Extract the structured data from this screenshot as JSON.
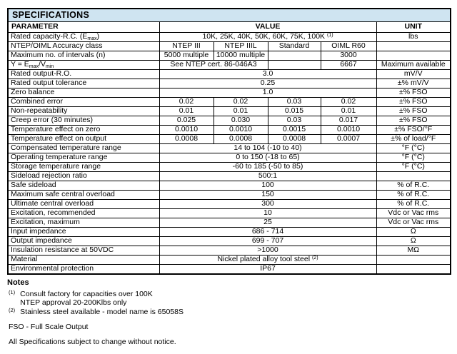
{
  "colors": {
    "title_bg": "#cfe4f1",
    "border": "#000000",
    "text": "#000000"
  },
  "table": {
    "title": "SPECIFICATIONS",
    "header": {
      "parameter": "PARAMETER",
      "value": "VALUE",
      "unit": "UNIT"
    },
    "rows": [
      {
        "parameter": "Rated capacity-R.C. (E_{max})",
        "cells": [
          {
            "text": "10K, 25K, 40K, 50K, 60K, 75K, 100K ^{(1)}",
            "span": 4
          }
        ],
        "unit": "lbs"
      },
      {
        "parameter": "NTEP/OIML Accuracy class",
        "cells": [
          {
            "text": "NTEP III",
            "span": 1
          },
          {
            "text": "NTEP IIIL",
            "span": 1
          },
          {
            "text": "Standard",
            "span": 1
          },
          {
            "text": "OIML R60",
            "span": 1
          }
        ],
        "unit": ""
      },
      {
        "parameter": "Maximum no. of intervals (n)",
        "cells": [
          {
            "text": "5000 multiple",
            "span": 1
          },
          {
            "text": "10000 multiple",
            "span": 1
          },
          {
            "text": "",
            "span": 1
          },
          {
            "text": "3000",
            "span": 1
          }
        ],
        "unit": ""
      },
      {
        "parameter": "Y = E_{max}/V_{min}",
        "cells": [
          {
            "text": "See NTEP cert. 86-046A3",
            "span": 2
          },
          {
            "text": "",
            "span": 1
          },
          {
            "text": "6667",
            "span": 1
          }
        ],
        "unit": "Maximum available"
      },
      {
        "parameter": "Rated output-R.O.",
        "cells": [
          {
            "text": "3.0",
            "span": 4
          }
        ],
        "unit": "mV/V"
      },
      {
        "parameter": "Rated output tolerance",
        "cells": [
          {
            "text": "0.25",
            "span": 4
          }
        ],
        "unit": "±% mV/V"
      },
      {
        "parameter": "Zero balance",
        "cells": [
          {
            "text": "1.0",
            "span": 4
          }
        ],
        "unit": "±% FSO"
      },
      {
        "parameter": "Combined error",
        "cells": [
          {
            "text": "0.02",
            "span": 1
          },
          {
            "text": "0.02",
            "span": 1
          },
          {
            "text": "0.03",
            "span": 1
          },
          {
            "text": "0.02",
            "span": 1
          }
        ],
        "unit": "±% FSO"
      },
      {
        "parameter": "Non-repeatability",
        "cells": [
          {
            "text": "0.01",
            "span": 1
          },
          {
            "text": "0.01",
            "span": 1
          },
          {
            "text": "0.015",
            "span": 1
          },
          {
            "text": "0.01",
            "span": 1
          }
        ],
        "unit": "±% FSO"
      },
      {
        "parameter": "Creep error (30 minutes)",
        "cells": [
          {
            "text": "0.025",
            "span": 1
          },
          {
            "text": "0.030",
            "span": 1
          },
          {
            "text": "0.03",
            "span": 1
          },
          {
            "text": "0.017",
            "span": 1
          }
        ],
        "unit": "±% FSO"
      },
      {
        "parameter": "Temperature effect on zero",
        "cells": [
          {
            "text": "0.0010",
            "span": 1
          },
          {
            "text": "0.0010",
            "span": 1
          },
          {
            "text": "0.0015",
            "span": 1
          },
          {
            "text": "0.0010",
            "span": 1
          }
        ],
        "unit": "±% FSO/°F"
      },
      {
        "parameter": "Temperature effect on output",
        "cells": [
          {
            "text": "0.0008",
            "span": 1
          },
          {
            "text": "0.0008",
            "span": 1
          },
          {
            "text": "0.0008",
            "span": 1
          },
          {
            "text": "0.0007",
            "span": 1
          }
        ],
        "unit": "±% of load/°F"
      },
      {
        "parameter": "Compensated temperature range",
        "cells": [
          {
            "text": "14 to 104 (-10 to 40)",
            "span": 4
          }
        ],
        "unit": "°F (°C)"
      },
      {
        "parameter": "Operating temperature range",
        "cells": [
          {
            "text": "0 to 150 (-18 to 65)",
            "span": 4
          }
        ],
        "unit": "°F (°C)"
      },
      {
        "parameter": "Storage temperature range",
        "cells": [
          {
            "text": "-60 to 185 (-50 to 85)",
            "span": 4
          }
        ],
        "unit": "°F (°C)"
      },
      {
        "parameter": "Sideload rejection ratio",
        "cells": [
          {
            "text": "500:1",
            "span": 4
          }
        ],
        "unit": ""
      },
      {
        "parameter": "Safe sideload",
        "cells": [
          {
            "text": "100",
            "span": 4
          }
        ],
        "unit": "% of R.C."
      },
      {
        "parameter": "Maximum safe central overload",
        "cells": [
          {
            "text": "150",
            "span": 4
          }
        ],
        "unit": "% of R.C."
      },
      {
        "parameter": "Ultimate central overload",
        "cells": [
          {
            "text": "300",
            "span": 4
          }
        ],
        "unit": "% of R.C."
      },
      {
        "parameter": "Excitation, recommended",
        "cells": [
          {
            "text": "10",
            "span": 4
          }
        ],
        "unit": "Vdc or Vac rms"
      },
      {
        "parameter": "Excitation, maximum",
        "cells": [
          {
            "text": "25",
            "span": 4
          }
        ],
        "unit": "Vdc or Vac rms"
      },
      {
        "parameter": "Input impedance",
        "cells": [
          {
            "text": "686 - 714",
            "span": 4
          }
        ],
        "unit": "Ω"
      },
      {
        "parameter": "Output impedance",
        "cells": [
          {
            "text": "699 - 707",
            "span": 4
          }
        ],
        "unit": "Ω"
      },
      {
        "parameter": "Insulation resistance at 50VDC",
        "cells": [
          {
            "text": ">1000",
            "span": 4
          }
        ],
        "unit": "MΩ"
      },
      {
        "parameter": "Material",
        "cells": [
          {
            "text": "Nickel plated alloy tool steel ^{(2)}",
            "span": 4
          }
        ],
        "unit": ""
      },
      {
        "parameter": "Environmental protection",
        "cells": [
          {
            "text": "IP67",
            "span": 4
          }
        ],
        "unit": ""
      }
    ]
  },
  "notes": {
    "heading": "Notes",
    "items": [
      {
        "marker": "(1)",
        "lines": [
          "Consult factory for capacities over 100K",
          "NTEP approval 20-200Klbs only"
        ]
      },
      {
        "marker": "(2)",
        "lines": [
          "Stainless steel available - model name is 65058S"
        ]
      }
    ],
    "fso": "FSO - Full Scale Output",
    "disclaimer": "All Specifications subject to change without notice."
  }
}
